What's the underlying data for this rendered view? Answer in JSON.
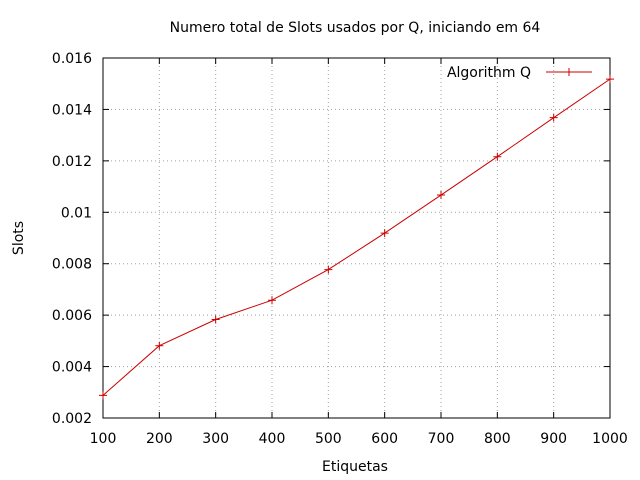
{
  "chart_data": {
    "type": "line",
    "title": "Numero total de Slots usados por Q, iniciando em 64",
    "xlabel": "Etiquetas",
    "ylabel": "Slots",
    "xlim": [
      100,
      1000
    ],
    "ylim": [
      0.002,
      0.016
    ],
    "x_ticks": [
      100,
      200,
      300,
      400,
      500,
      600,
      700,
      800,
      900,
      1000
    ],
    "x_tick_labels": [
      "100",
      "200",
      "300",
      "400",
      "500",
      "600",
      "700",
      "800",
      "900",
      "1000"
    ],
    "y_ticks": [
      0.002,
      0.004,
      0.006,
      0.008,
      0.01,
      0.012,
      0.014,
      0.016
    ],
    "y_tick_labels": [
      "0.002",
      "0.004",
      "0.006",
      "0.008",
      "0.01",
      "0.012",
      "0.014",
      "0.016"
    ],
    "grid": true,
    "legend_position": "top-right",
    "series": [
      {
        "name": "Algorithm Q",
        "color": "#cc0000",
        "marker": "plus",
        "x": [
          100,
          200,
          300,
          400,
          500,
          600,
          700,
          800,
          900,
          1000
        ],
        "y": [
          0.00288,
          0.00481,
          0.00583,
          0.00658,
          0.00777,
          0.00919,
          0.01067,
          0.01216,
          0.01368,
          0.01518
        ]
      }
    ]
  }
}
